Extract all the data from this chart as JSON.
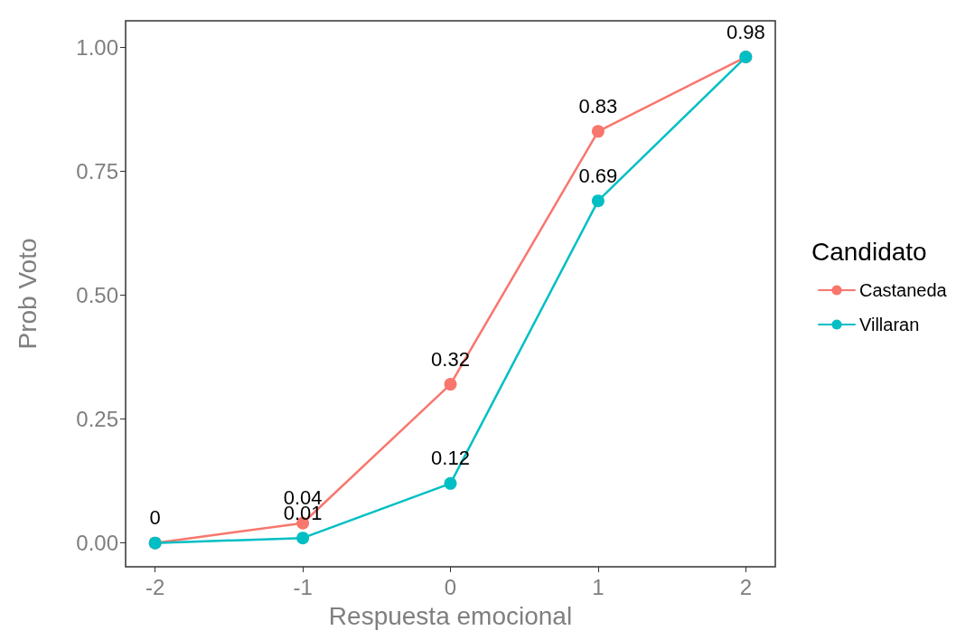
{
  "chart_data": {
    "type": "line",
    "xlabel": "Respuesta emocional",
    "ylabel": "Prob Voto",
    "legend_title": "Candidato",
    "x": [
      -2,
      -1,
      0,
      1,
      2
    ],
    "series": [
      {
        "name": "Castaneda",
        "color": "#f8766d",
        "values": [
          0,
          0.04,
          0.32,
          0.83,
          0.98
        ],
        "value_labels": [
          "0",
          "0.04",
          "0.32",
          "0.83",
          "0.98"
        ]
      },
      {
        "name": "Villaran",
        "color": "#00bfc4",
        "values": [
          0,
          0.01,
          0.12,
          0.69,
          0.98
        ],
        "value_labels": [
          null,
          "0.01",
          "0.12",
          "0.69",
          null
        ]
      }
    ],
    "xlim": [
      -2.2,
      2.2
    ],
    "xticks": [
      -2,
      -1,
      0,
      1,
      2
    ],
    "ylim": [
      -0.048,
      1.053
    ],
    "yticks": [
      {
        "value": 0,
        "label": "0.00"
      },
      {
        "value": 0.25,
        "label": "0.25"
      },
      {
        "value": 0.5,
        "label": "0.50"
      },
      {
        "value": 0.75,
        "label": "0.75"
      },
      {
        "value": 1,
        "label": "1.00"
      }
    ],
    "grid": false,
    "legend": "right",
    "marker": "circle",
    "line_style": "solid"
  }
}
